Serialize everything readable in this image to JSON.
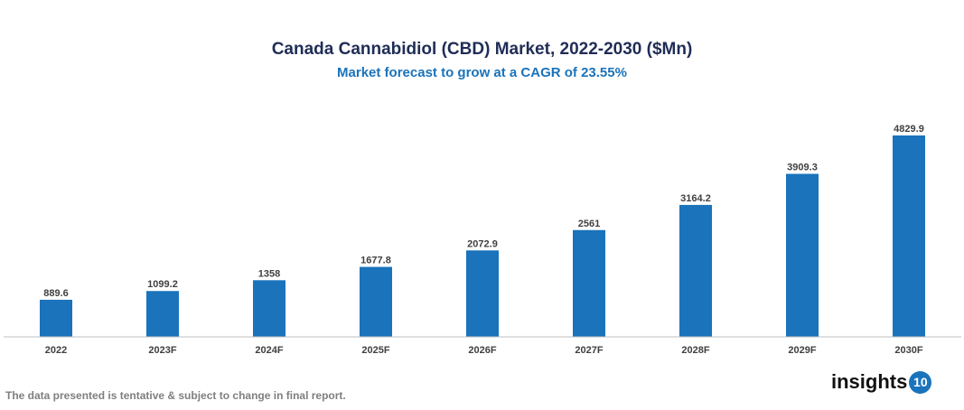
{
  "chart_data": {
    "type": "bar",
    "title": "Canada Cannabidiol (CBD) Market, 2022-2030 ($Mn)",
    "subtitle": "Market forecast to grow at a CAGR of 23.55%",
    "categories": [
      "2022",
      "2023F",
      "2024F",
      "2025F",
      "2026F",
      "2027F",
      "2028F",
      "2029F",
      "2030F"
    ],
    "values": [
      889.6,
      1099.2,
      1358,
      1677.8,
      2072.9,
      2561,
      3164.2,
      3909.3,
      4829.9
    ],
    "xlabel": "",
    "ylabel": "",
    "ylim": [
      0,
      4829.9
    ],
    "grid": false,
    "bar_color": "#1a73bb"
  },
  "footer": {
    "note": "The data presented is tentative & subject to change in final report.",
    "logo_text": "insights",
    "logo_badge": "10"
  }
}
